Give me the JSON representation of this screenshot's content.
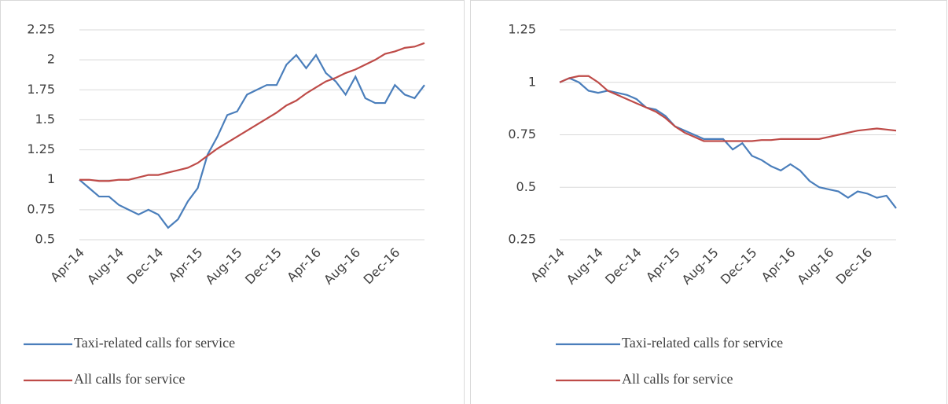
{
  "chart_data": [
    {
      "type": "line",
      "categories": [
        "Apr-14",
        null,
        null,
        null,
        "Aug-14",
        null,
        null,
        null,
        "Dec-14",
        null,
        null,
        null,
        "Apr-15",
        null,
        null,
        null,
        "Aug-15",
        null,
        null,
        null,
        "Dec-15",
        null,
        null,
        null,
        "Apr-16",
        null,
        null,
        null,
        "Aug-16",
        null,
        null,
        null,
        "Dec-16",
        null,
        null,
        null
      ],
      "ylim": [
        0.5,
        2.25
      ],
      "yticks": [
        0.5,
        0.75,
        1,
        1.25,
        1.5,
        1.75,
        2,
        2.25
      ],
      "grid": true,
      "series": [
        {
          "name": "Taxi-related calls for service",
          "color": "#4a7ebb",
          "values": [
            1.0,
            0.93,
            0.86,
            0.86,
            0.79,
            0.75,
            0.71,
            0.75,
            0.71,
            0.6,
            0.67,
            0.82,
            0.93,
            1.21,
            1.36,
            1.54,
            1.57,
            1.71,
            1.75,
            1.79,
            1.79,
            1.96,
            2.04,
            1.93,
            2.04,
            1.89,
            1.82,
            1.71,
            1.86,
            1.68,
            1.64,
            1.64,
            1.79,
            1.71,
            1.68,
            1.79
          ]
        },
        {
          "name": "All calls for service",
          "color": "#be4b48",
          "values": [
            1.0,
            1.0,
            0.99,
            0.99,
            1.0,
            1.0,
            1.02,
            1.04,
            1.04,
            1.06,
            1.08,
            1.1,
            1.14,
            1.2,
            1.26,
            1.31,
            1.36,
            1.41,
            1.46,
            1.51,
            1.56,
            1.62,
            1.66,
            1.72,
            1.77,
            1.82,
            1.85,
            1.89,
            1.92,
            1.96,
            2.0,
            2.05,
            2.07,
            2.1,
            2.11,
            2.14
          ]
        }
      ]
    },
    {
      "type": "line",
      "categories": [
        "Apr-14",
        null,
        null,
        null,
        "Aug-14",
        null,
        null,
        null,
        "Dec-14",
        null,
        null,
        null,
        "Apr-15",
        null,
        null,
        null,
        "Aug-15",
        null,
        null,
        null,
        "Dec-15",
        null,
        null,
        null,
        "Apr-16",
        null,
        null,
        null,
        "Aug-16",
        null,
        null,
        null,
        "Dec-16",
        null,
        null,
        null
      ],
      "ylim": [
        0.25,
        1.25
      ],
      "yticks": [
        0.25,
        0.5,
        0.75,
        1,
        1.25
      ],
      "grid": true,
      "series": [
        {
          "name": "Taxi-related calls for service",
          "color": "#4a7ebb",
          "values": [
            1.0,
            1.02,
            1.0,
            0.96,
            0.95,
            0.96,
            0.95,
            0.94,
            0.92,
            0.88,
            0.87,
            0.84,
            0.79,
            0.77,
            0.75,
            0.73,
            0.73,
            0.73,
            0.68,
            0.71,
            0.65,
            0.63,
            0.6,
            0.58,
            0.61,
            0.58,
            0.53,
            0.5,
            0.49,
            0.48,
            0.45,
            0.48,
            0.47,
            0.45,
            0.46,
            0.4
          ]
        },
        {
          "name": "All calls for service",
          "color": "#be4b48",
          "values": [
            1.0,
            1.02,
            1.03,
            1.03,
            1.0,
            0.96,
            0.94,
            0.92,
            0.9,
            0.88,
            0.86,
            0.83,
            0.79,
            0.76,
            0.74,
            0.72,
            0.72,
            0.72,
            0.72,
            0.72,
            0.72,
            0.725,
            0.725,
            0.73,
            0.73,
            0.73,
            0.73,
            0.73,
            0.74,
            0.75,
            0.76,
            0.77,
            0.775,
            0.78,
            0.775,
            0.77
          ]
        }
      ]
    }
  ]
}
